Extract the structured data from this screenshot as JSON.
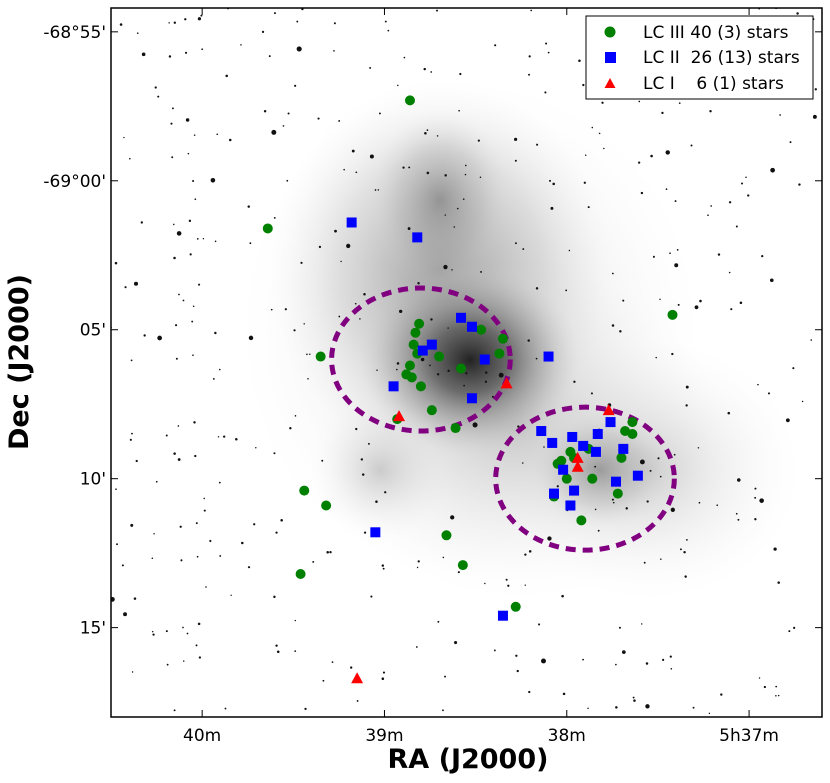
{
  "chart_data": {
    "type": "scatter",
    "xlabel": "RA (J2000)",
    "ylabel": "Dec (J2000)",
    "x_ticks": [
      {
        "label": "40m",
        "value": 40.0
      },
      {
        "label": "39m",
        "value": 39.0
      },
      {
        "label": "38m",
        "value": 38.0
      },
      {
        "label": "5h37m",
        "value": 37.0
      }
    ],
    "y_ticks": [
      {
        "label": "-68°55'",
        "value": -55.0
      },
      {
        "label": "-69°00'",
        "value": -60.0
      },
      {
        "label": "05'",
        "value": -65.0
      },
      {
        "label": "10'",
        "value": -70.0
      },
      {
        "label": "15'",
        "value": -75.0
      }
    ],
    "xlim": [
      40.5,
      36.6
    ],
    "ylim": [
      -78.0,
      -54.2
    ],
    "grid": false,
    "legend_position": "top-right",
    "background": "grayscale nebula image (Tarantula / 30 Doradus region)",
    "series": [
      {
        "name": "LC III 40 (3) stars",
        "marker": "circle",
        "color": "#008000",
        "points": [
          [
            38.86,
            -57.3
          ],
          [
            39.64,
            -61.6
          ],
          [
            39.35,
            -65.9
          ],
          [
            38.81,
            -64.8
          ],
          [
            38.83,
            -65.1
          ],
          [
            38.84,
            -65.5
          ],
          [
            38.82,
            -65.8
          ],
          [
            38.86,
            -66.2
          ],
          [
            38.88,
            -66.5
          ],
          [
            38.85,
            -66.6
          ],
          [
            38.8,
            -66.9
          ],
          [
            38.58,
            -66.3
          ],
          [
            38.47,
            -65.0
          ],
          [
            38.35,
            -65.3
          ],
          [
            38.37,
            -65.8
          ],
          [
            38.74,
            -67.7
          ],
          [
            38.61,
            -68.3
          ],
          [
            38.93,
            -68.0
          ],
          [
            37.42,
            -64.5
          ],
          [
            37.64,
            -68.1
          ],
          [
            37.64,
            -68.5
          ],
          [
            37.72,
            -70.5
          ],
          [
            38.03,
            -69.4
          ],
          [
            37.88,
            -69.0
          ],
          [
            37.96,
            -69.3
          ],
          [
            37.86,
            -70.0
          ],
          [
            38.07,
            -70.6
          ],
          [
            37.92,
            -71.4
          ],
          [
            39.44,
            -70.4
          ],
          [
            39.32,
            -70.9
          ],
          [
            38.66,
            -71.9
          ],
          [
            38.57,
            -72.9
          ],
          [
            38.28,
            -74.3
          ],
          [
            39.46,
            -73.2
          ],
          [
            38.7,
            -65.9
          ],
          [
            37.98,
            -69.1
          ],
          [
            38.05,
            -69.5
          ],
          [
            37.68,
            -68.4
          ],
          [
            37.7,
            -69.3
          ],
          [
            38.0,
            -70.0
          ]
        ]
      },
      {
        "name": "LC II  26 (13) stars",
        "marker": "square",
        "color": "#0000ff",
        "points": [
          [
            39.18,
            -61.4
          ],
          [
            38.79,
            -65.7
          ],
          [
            38.74,
            -65.5
          ],
          [
            38.45,
            -66.0
          ],
          [
            38.95,
            -66.9
          ],
          [
            37.97,
            -68.6
          ],
          [
            37.91,
            -68.9
          ],
          [
            37.84,
            -69.1
          ],
          [
            37.76,
            -68.1
          ],
          [
            37.69,
            -69.0
          ],
          [
            37.61,
            -69.9
          ],
          [
            37.96,
            -70.4
          ],
          [
            38.07,
            -70.5
          ],
          [
            37.73,
            -70.1
          ],
          [
            38.35,
            -74.6
          ],
          [
            38.82,
            -61.9
          ],
          [
            38.52,
            -64.9
          ],
          [
            38.1,
            -65.9
          ],
          [
            38.52,
            -67.3
          ],
          [
            38.14,
            -68.4
          ],
          [
            38.02,
            -69.7
          ],
          [
            38.08,
            -68.8
          ],
          [
            37.83,
            -68.5
          ],
          [
            39.05,
            -71.8
          ],
          [
            38.58,
            -64.6
          ],
          [
            37.98,
            -70.9
          ]
        ]
      },
      {
        "name": "LC I    6 (1) stars",
        "marker": "triangle",
        "color": "#ff0000",
        "points": [
          [
            39.15,
            -76.7
          ],
          [
            38.92,
            -67.9
          ],
          [
            38.33,
            -66.8
          ],
          [
            37.94,
            -69.3
          ],
          [
            37.94,
            -69.6
          ],
          [
            37.77,
            -67.7
          ]
        ]
      }
    ],
    "circles": [
      {
        "color": "#800080",
        "style": "dashed",
        "center": [
          38.8,
          -66.0
        ],
        "radius_ra_m": 0.49,
        "radius_dec_arcmin": 2.4
      },
      {
        "color": "#800080",
        "style": "dashed",
        "center": [
          37.9,
          -70.0
        ],
        "radius_ra_m": 0.49,
        "radius_dec_arcmin": 2.4
      }
    ]
  }
}
